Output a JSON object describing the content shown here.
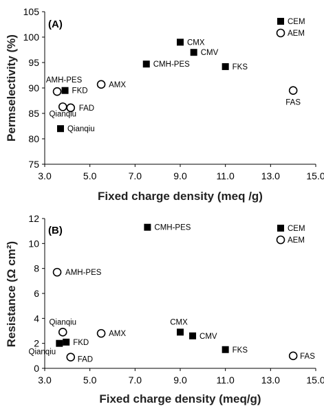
{
  "chart_data": [
    {
      "type": "scatter",
      "panel_label": "(A)",
      "xlabel": "Fixed charge density (meq /g)",
      "ylabel": "Permselectivity (%)",
      "xlim": [
        3.0,
        15.0
      ],
      "ylim": [
        75,
        105
      ],
      "xticks": [
        "3.0",
        "5.0",
        "7.0",
        "9.0",
        "11.0",
        "13.0",
        "15.0"
      ],
      "yticks": [
        "75",
        "80",
        "85",
        "90",
        "95",
        "100",
        "105"
      ],
      "grid": false,
      "legend_position": "top-right",
      "series": [
        {
          "name": "CEM",
          "marker": "filled-square",
          "points": [
            {
              "label": "CMX",
              "x": 9.0,
              "y": 99.0
            },
            {
              "label": "CMV",
              "x": 9.6,
              "y": 97.0
            },
            {
              "label": "CMH-PES",
              "x": 7.5,
              "y": 94.7
            },
            {
              "label": "FKS",
              "x": 11.0,
              "y": 94.2
            },
            {
              "label": "FKD",
              "x": 3.9,
              "y": 89.5
            },
            {
              "label": "Qianqiu",
              "x": 3.7,
              "y": 82.0
            }
          ]
        },
        {
          "name": "AEM",
          "marker": "open-circle",
          "points": [
            {
              "label": "AMX",
              "x": 5.5,
              "y": 90.7
            },
            {
              "label": "AMH-PES",
              "x": 3.55,
              "y": 89.3
            },
            {
              "label": "Qianqiu",
              "x": 3.8,
              "y": 86.3
            },
            {
              "label": "FAD",
              "x": 4.15,
              "y": 86.1
            },
            {
              "label": "FAS",
              "x": 14.0,
              "y": 89.5
            }
          ]
        }
      ]
    },
    {
      "type": "scatter",
      "panel_label": "(B)",
      "xlabel": "Fixed charge density (meq/g)",
      "ylabel": "Resistance (Ω cm²)",
      "xlim": [
        3.0,
        15.0
      ],
      "ylim": [
        0,
        12
      ],
      "xticks": [
        "3.0",
        "5.0",
        "7.0",
        "9.0",
        "11.0",
        "13.0",
        "15.0"
      ],
      "yticks": [
        "0",
        "2",
        "4",
        "6",
        "8",
        "10",
        "12"
      ],
      "grid": false,
      "legend_position": "top-right",
      "series": [
        {
          "name": "CEM",
          "marker": "filled-square",
          "points": [
            {
              "label": "CMH-PES",
              "x": 7.55,
              "y": 11.3
            },
            {
              "label": "CMX",
              "x": 9.0,
              "y": 2.9
            },
            {
              "label": "CMV",
              "x": 9.55,
              "y": 2.6
            },
            {
              "label": "FKS",
              "x": 11.0,
              "y": 1.5
            },
            {
              "label": "FKD",
              "x": 3.95,
              "y": 2.1
            },
            {
              "label": "Qianqiu",
              "x": 3.65,
              "y": 2.0
            }
          ]
        },
        {
          "name": "AEM",
          "marker": "open-circle",
          "points": [
            {
              "label": "AMH-PES",
              "x": 3.55,
              "y": 7.7
            },
            {
              "label": "Qianqiu",
              "x": 3.8,
              "y": 2.9
            },
            {
              "label": "AMX",
              "x": 5.5,
              "y": 2.8
            },
            {
              "label": "FAD",
              "x": 4.15,
              "y": 0.9
            },
            {
              "label": "FAS",
              "x": 14.0,
              "y": 1.0
            }
          ]
        }
      ]
    }
  ]
}
